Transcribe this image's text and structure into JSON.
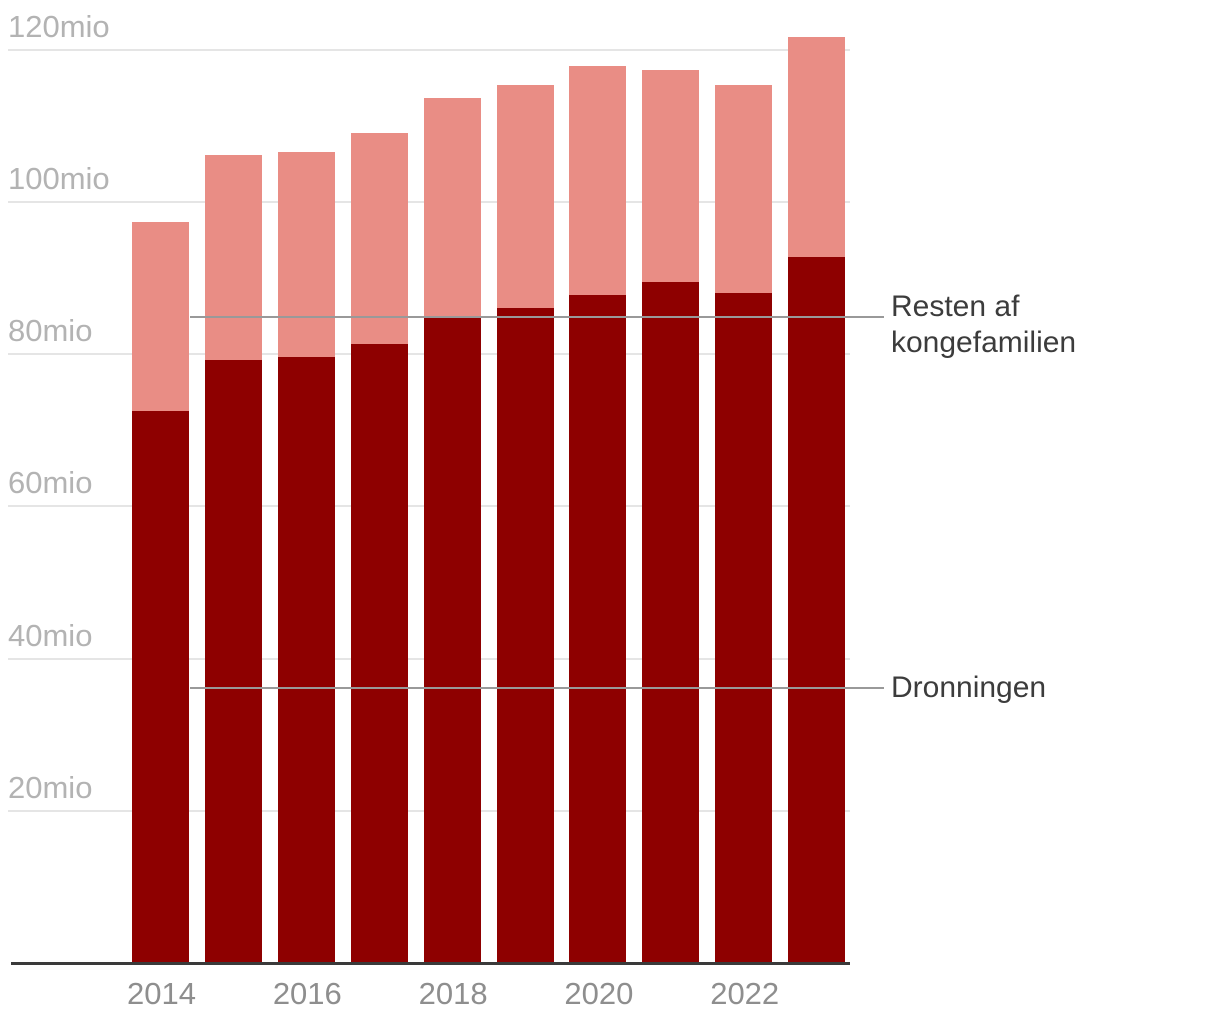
{
  "chart_data": {
    "type": "bar",
    "stacked": true,
    "title": "",
    "categories": [
      "2014",
      "2015",
      "2016",
      "2017",
      "2018",
      "2019",
      "2020",
      "2021",
      "2022",
      "2023"
    ],
    "series": [
      {
        "name": "Dronningen",
        "color": "#8e0000",
        "values": [
          72.4,
          79.1,
          79.5,
          81.2,
          84.9,
          86.0,
          87.7,
          89.3,
          87.9,
          92.7
        ]
      },
      {
        "name": "Resten af kongefamilien",
        "color": "#e98d85",
        "values": [
          24.8,
          27.0,
          27.0,
          27.8,
          28.6,
          29.3,
          30.0,
          27.9,
          27.3,
          28.9
        ]
      }
    ],
    "totals": [
      97.2,
      106.1,
      106.5,
      109.0,
      113.5,
      115.3,
      117.7,
      117.2,
      115.2,
      121.6
    ],
    "unit": "mio",
    "ylim": [
      0,
      126.6
    ],
    "yticks": [
      {
        "value": 20,
        "label": "20mio"
      },
      {
        "value": 40,
        "label": "40mio"
      },
      {
        "value": 60,
        "label": "60mio"
      },
      {
        "value": 80,
        "label": "80mio"
      },
      {
        "value": 100,
        "label": "100mio"
      },
      {
        "value": 120,
        "label": "120mio"
      }
    ],
    "xticks": [
      {
        "category_index": 0,
        "label": "2014"
      },
      {
        "category_index": 2,
        "label": "2016"
      },
      {
        "category_index": 4,
        "label": "2018"
      },
      {
        "category_index": 6,
        "label": "2020"
      },
      {
        "category_index": 8,
        "label": "2022"
      }
    ],
    "grid": true,
    "legend_position": "right-callouts",
    "annotations": [
      {
        "id": "resten-af-kongefamilien",
        "text_lines": [
          "Resten af",
          "kongefamilien"
        ],
        "series": "Resten af kongefamilien",
        "value": 84.7
      },
      {
        "id": "dronningen",
        "text_lines": [
          "Dronningen"
        ],
        "series": "Dronningen",
        "value": 36
      }
    ]
  },
  "colors": {
    "background": "#ffffff",
    "queen_bar": "#8e0000",
    "family_bar": "#e98d85",
    "gridline": "#e5e5e5",
    "axis_line": "#3a3a3a",
    "y_tick_text": "#b3b3b3",
    "x_tick_text": "#8e8e8e",
    "callout_line": "#999999",
    "annotation_text": "#3c3c3c"
  }
}
